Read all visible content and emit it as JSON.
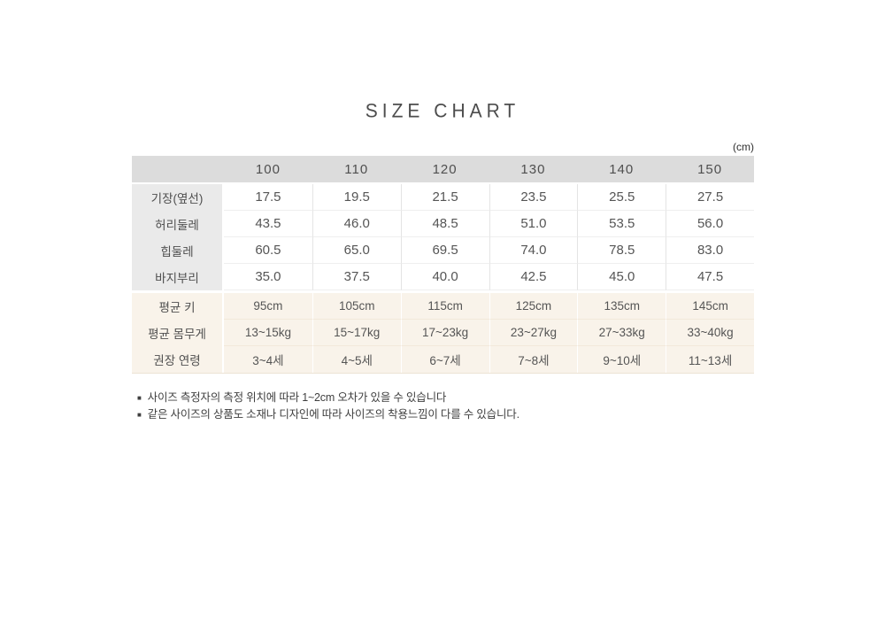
{
  "title": "SIZE CHART",
  "unit_label": "(cm)",
  "table": {
    "header": [
      "100",
      "110",
      "120",
      "130",
      "140",
      "150"
    ],
    "measurement_rows": [
      {
        "label": "기장(옆선)",
        "values": [
          "17.5",
          "19.5",
          "21.5",
          "23.5",
          "25.5",
          "27.5"
        ]
      },
      {
        "label": "허리둘레",
        "values": [
          "43.5",
          "46.0",
          "48.5",
          "51.0",
          "53.5",
          "56.0"
        ]
      },
      {
        "label": "힙둘레",
        "values": [
          "60.5",
          "65.0",
          "69.5",
          "74.0",
          "78.5",
          "83.0"
        ]
      },
      {
        "label": "바지부리",
        "values": [
          "35.0",
          "37.5",
          "40.0",
          "42.5",
          "45.0",
          "47.5"
        ]
      }
    ],
    "info_rows": [
      {
        "label": "평균 키",
        "values": [
          "95cm",
          "105cm",
          "115cm",
          "125cm",
          "135cm",
          "145cm"
        ]
      },
      {
        "label": "평균 몸무게",
        "values": [
          "13~15kg",
          "15~17kg",
          "17~23kg",
          "23~27kg",
          "27~33kg",
          "33~40kg"
        ]
      },
      {
        "label": "권장 연령",
        "values": [
          "3~4세",
          "4~5세",
          "6~7세",
          "7~8세",
          "9~10세",
          "11~13세"
        ]
      }
    ]
  },
  "notes": [
    {
      "bullet": "■",
      "text": "사이즈 측정자의 측정 위치에 따라 1~2cm 오차가 있을 수 있습니다"
    },
    {
      "bullet": "■",
      "text": "같은 사이즈의 상품도 소재나 디자인에 따라 사이즈의 착용느낌이 다를 수 있습니다."
    }
  ],
  "colors": {
    "header_bg": "#dcdcdc",
    "label_bg": "#eaeaea",
    "info_bg": "#f9f3ea",
    "text": "#555555"
  },
  "chart_data": {
    "type": "table",
    "title": "SIZE CHART",
    "unit": "cm",
    "categories": [
      "100",
      "110",
      "120",
      "130",
      "140",
      "150"
    ],
    "series": [
      {
        "name": "기장(옆선)",
        "values": [
          17.5,
          19.5,
          21.5,
          23.5,
          25.5,
          27.5
        ]
      },
      {
        "name": "허리둘레",
        "values": [
          43.5,
          46.0,
          48.5,
          51.0,
          53.5,
          56.0
        ]
      },
      {
        "name": "힙둘레",
        "values": [
          60.5,
          65.0,
          69.5,
          74.0,
          78.5,
          83.0
        ]
      },
      {
        "name": "바지부리",
        "values": [
          35.0,
          37.5,
          40.0,
          42.5,
          45.0,
          47.5
        ]
      },
      {
        "name": "평균 키",
        "values": [
          "95cm",
          "105cm",
          "115cm",
          "125cm",
          "135cm",
          "145cm"
        ]
      },
      {
        "name": "평균 몸무게",
        "values": [
          "13~15kg",
          "15~17kg",
          "17~23kg",
          "23~27kg",
          "27~33kg",
          "33~40kg"
        ]
      },
      {
        "name": "권장 연령",
        "values": [
          "3~4세",
          "4~5세",
          "6~7세",
          "7~8세",
          "9~10세",
          "11~13세"
        ]
      }
    ]
  }
}
